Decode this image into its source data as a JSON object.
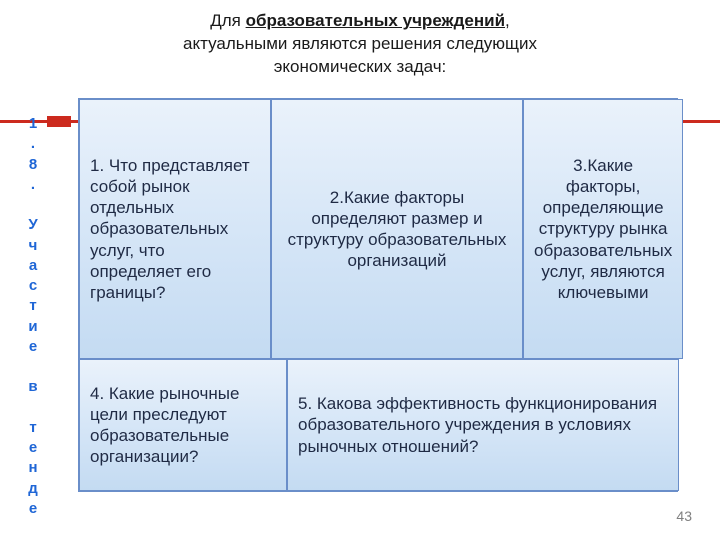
{
  "header": {
    "prefix": "Для ",
    "bold_underline": "образовательных учреждений",
    "suffix1": ",",
    "line2": "актуальными являются решения следующих",
    "line3": "экономических задач:"
  },
  "sidebar": {
    "text": "1.8. Участие в тенде"
  },
  "table": {
    "cell1": "1. Что представляет собой рынок отдельных образовательных услуг, что определяет его границы?",
    "cell2": "2.Какие факторы определяют размер и структуру образовательных организаций",
    "cell3": "3.Какие факторы, определяющие структуру рынка образовательных услуг, являются ключевыми",
    "cell4": "4. Какие рыночные цели преследуют образовательные организации?",
    "cell5": "5. Какова эффективность функционирования образовательного учреждения в условиях рыночных отношений?"
  },
  "page_number": "43",
  "colors": {
    "rule": "#cc2a1e",
    "sidebar_text": "#1f66d6",
    "cell_border": "#6a8ec9",
    "cell_top": "#eaf2fb",
    "cell_mid": "#d6e6f7",
    "cell_bot": "#c4dbf2",
    "body_text": "#1f2a44"
  }
}
